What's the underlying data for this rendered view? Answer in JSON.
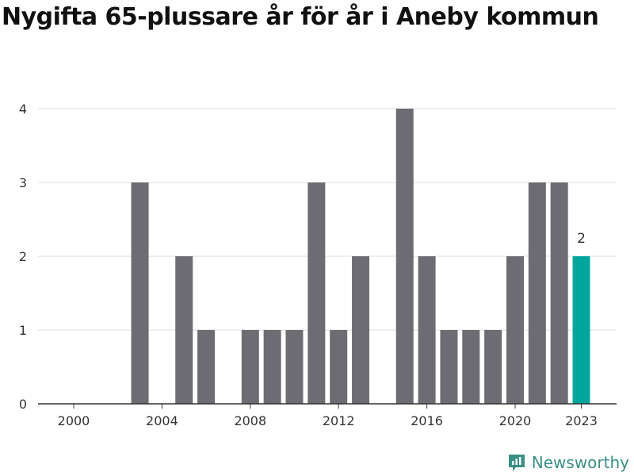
{
  "chart_data": {
    "type": "bar",
    "title": "Nygifta 65-plussare år för år i Aneby kommun",
    "xlabel": "",
    "ylabel": "",
    "categories": [
      "2000",
      "2001",
      "2002",
      "2003",
      "2004",
      "2005",
      "2006",
      "2007",
      "2008",
      "2009",
      "2010",
      "2011",
      "2012",
      "2013",
      "2014",
      "2015",
      "2016",
      "2017",
      "2018",
      "2019",
      "2020",
      "2021",
      "2022",
      "2023"
    ],
    "values": [
      0,
      0,
      0,
      3,
      0,
      2,
      1,
      0,
      1,
      1,
      1,
      3,
      1,
      2,
      0,
      4,
      2,
      1,
      1,
      1,
      2,
      3,
      3,
      2
    ],
    "ylim": [
      0,
      4
    ],
    "yticks": [
      "0",
      "1",
      "2",
      "3",
      "4"
    ],
    "xtick_labels": [
      "2000",
      "2004",
      "2008",
      "2012",
      "2016",
      "2020",
      "2023"
    ],
    "highlight": {
      "category": "2023",
      "label": "2"
    },
    "grid": true,
    "colors": {
      "bar": "#6d6c72",
      "highlight": "#00a69c",
      "grid": "#dddddd",
      "axis": "#333333"
    }
  },
  "brand": {
    "name": "Newsworthy",
    "icon": "newsworthy-logo-icon"
  }
}
